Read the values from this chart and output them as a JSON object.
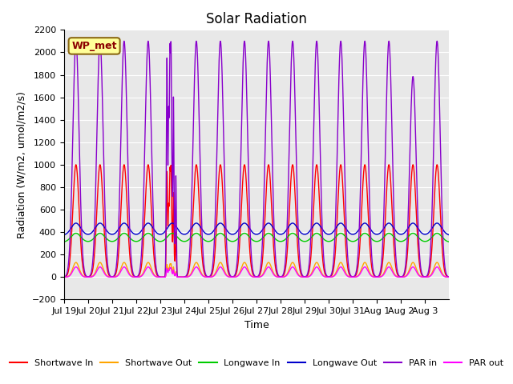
{
  "title": "Solar Radiation",
  "xlabel": "Time",
  "ylabel": "Radiation (W/m2, umol/m2/s)",
  "ylim": [
    -200,
    2200
  ],
  "yticks": [
    -200,
    0,
    200,
    400,
    600,
    800,
    1000,
    1200,
    1400,
    1600,
    1800,
    2000,
    2200
  ],
  "x_tick_labels": [
    "Jul 19",
    "Jul 20",
    "Jul 21",
    "Jul 22",
    "Jul 23",
    "Jul 24",
    "Jul 25",
    "Jul 26",
    "Jul 27",
    "Jul 28",
    "Jul 29",
    "Jul 30",
    "Jul 31",
    "Aug 1",
    "Aug 2",
    "Aug 3"
  ],
  "n_days": 16,
  "annotation_label": "WP_met",
  "annotation_color": "#8B0000",
  "annotation_bg": "#FFFF99",
  "annotation_border": "#8B6914",
  "bg_color": "#E8E8E8",
  "series": {
    "shortwave_in": {
      "color": "#FF0000",
      "label": "Shortwave In"
    },
    "shortwave_out": {
      "color": "#FFA500",
      "label": "Shortwave Out"
    },
    "longwave_in": {
      "color": "#00CC00",
      "label": "Longwave In"
    },
    "longwave_out": {
      "color": "#0000CC",
      "label": "Longwave Out"
    },
    "par_in": {
      "color": "#8800CC",
      "label": "PAR in"
    },
    "par_out": {
      "color": "#FF00FF",
      "label": "PAR out"
    }
  }
}
